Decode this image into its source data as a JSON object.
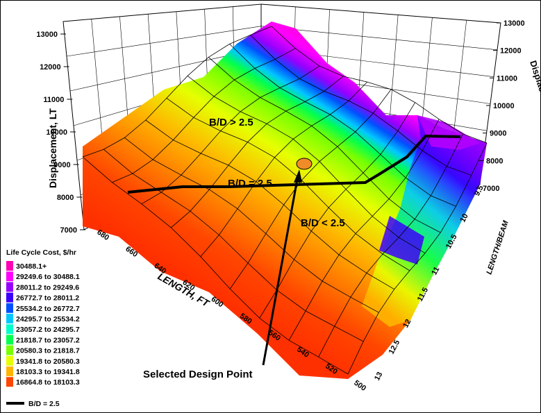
{
  "chart_data": {
    "type": "surface3d",
    "xlabel": "LENGTH, FT",
    "ylabel": "LENGTH/BEAM",
    "zlabel_left": "Displacement, LT",
    "zlabel_right": "Displacement, LT",
    "x_ticks": [
      "500",
      "520",
      "540",
      "560",
      "580",
      "600",
      "620",
      "640",
      "660",
      "680"
    ],
    "y_ticks": [
      "13",
      "12.5",
      "12",
      "11.5",
      "11",
      "10.5",
      "10",
      "9.5"
    ],
    "z_ticks_left": [
      "7000",
      "8000",
      "9000",
      "10000",
      "11000",
      "12000",
      "13000"
    ],
    "z_ticks_right": [
      "7000",
      "8000",
      "9000",
      "10000",
      "11000",
      "12000",
      "13000"
    ],
    "zlim": [
      7000,
      13000
    ],
    "legend": {
      "title": "Life Cycle Cost, $/hr",
      "position": "bottom-left",
      "bins": [
        {
          "label": "30488.1+",
          "color": "#ff00b4"
        },
        {
          "label": "29249.6 to 30488.1",
          "color": "#ff00ff"
        },
        {
          "label": "28011.2 to 29249.6",
          "color": "#9600ff"
        },
        {
          "label": "26772.7 to 28011.2",
          "color": "#3c00ff"
        },
        {
          "label": "25534.2 to 26772.7",
          "color": "#0050ff"
        },
        {
          "label": "24295.7 to 25534.2",
          "color": "#00c8ff"
        },
        {
          "label": "23057.2 to 24295.7",
          "color": "#00ffc8"
        },
        {
          "label": "21818.7 to 23057.2",
          "color": "#00ff50"
        },
        {
          "label": "20580.3 to 21818.7",
          "color": "#78ff00"
        },
        {
          "label": "19341.8 to 20580.3",
          "color": "#e6ff00"
        },
        {
          "label": "18103.3 to 19341.8",
          "color": "#ffb400"
        },
        {
          "label": "16864.8 to 18103.3",
          "color": "#ff4600"
        }
      ],
      "line_entry": "B/D = 2.5"
    },
    "annotations": {
      "above": "B/D > 2.5",
      "equal": "B/D = 2.5",
      "below": "B/D < 2.5",
      "design_point": "Selected Design Point"
    }
  }
}
